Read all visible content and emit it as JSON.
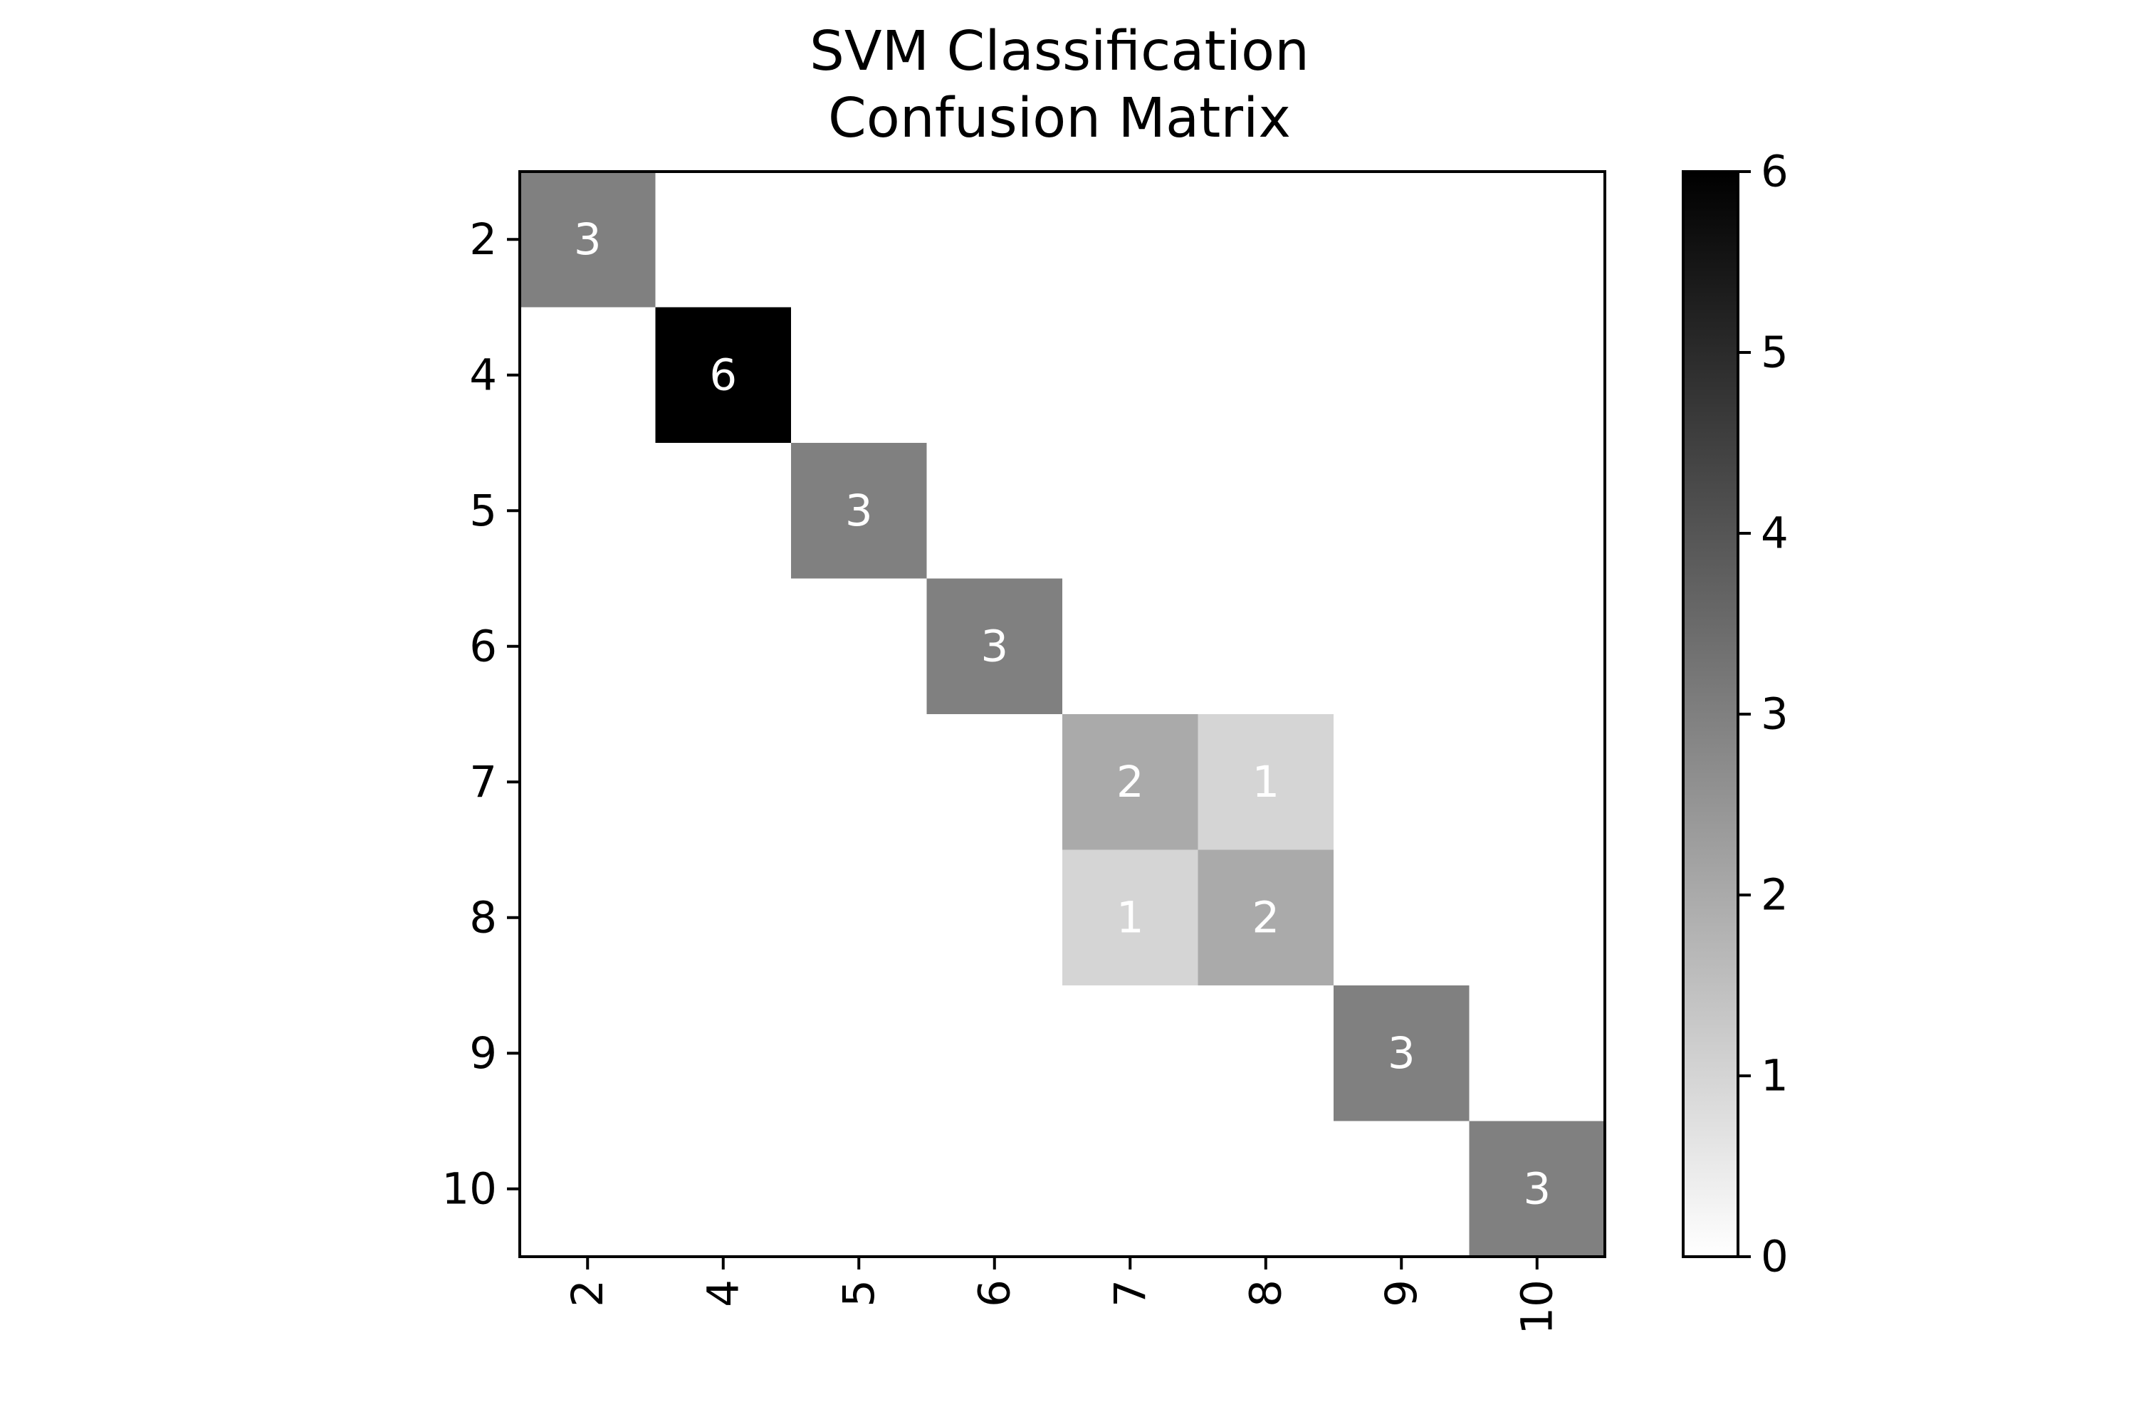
{
  "chart_data": {
    "type": "heatmap",
    "title_lines": [
      "SVM Classification",
      "Confusion Matrix"
    ],
    "xlabel": "",
    "ylabel": "",
    "x_categories": [
      "2",
      "4",
      "5",
      "6",
      "7",
      "8",
      "9",
      "10"
    ],
    "y_categories": [
      "2",
      "4",
      "5",
      "6",
      "7",
      "8",
      "9",
      "10"
    ],
    "x_tick_rotation": "vertical",
    "matrix": [
      [
        3,
        0,
        0,
        0,
        0,
        0,
        0,
        0
      ],
      [
        0,
        6,
        0,
        0,
        0,
        0,
        0,
        0
      ],
      [
        0,
        0,
        3,
        0,
        0,
        0,
        0,
        0
      ],
      [
        0,
        0,
        0,
        3,
        0,
        0,
        0,
        0
      ],
      [
        0,
        0,
        0,
        0,
        2,
        1,
        0,
        0
      ],
      [
        0,
        0,
        0,
        0,
        1,
        2,
        0,
        0
      ],
      [
        0,
        0,
        0,
        0,
        0,
        0,
        3,
        0
      ],
      [
        0,
        0,
        0,
        0,
        0,
        0,
        0,
        3
      ]
    ],
    "annotate_nonzero_only": true,
    "colormap": "Greys",
    "colorbar": {
      "min": 0,
      "max": 6,
      "ticks": [
        "0",
        "1",
        "2",
        "3",
        "4",
        "5",
        "6"
      ],
      "placement": "right"
    },
    "colors": {
      "low": "#ffffff",
      "high": "#000000",
      "annotation_text": "#ffffff"
    },
    "grid": false
  }
}
